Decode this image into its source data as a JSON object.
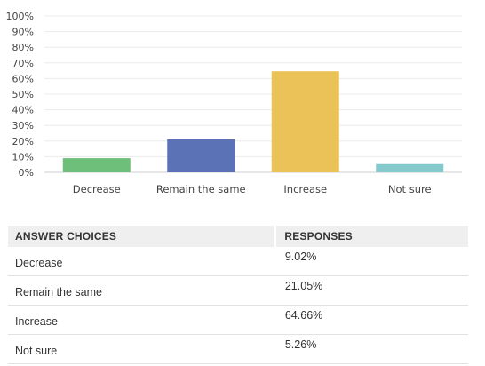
{
  "chart_data": {
    "type": "bar",
    "categories": [
      "Decrease",
      "Remain the same",
      "Increase",
      "Not sure"
    ],
    "values": [
      9.02,
      21.05,
      64.66,
      5.26
    ],
    "colors": [
      "#6dbf7a",
      "#5b73b6",
      "#eac257",
      "#84c9cb"
    ],
    "yticks": [
      "0%",
      "10%",
      "20%",
      "30%",
      "40%",
      "50%",
      "60%",
      "70%",
      "80%",
      "90%",
      "100%"
    ],
    "ylim": [
      0,
      100
    ],
    "grid": true,
    "title": "",
    "xlabel": "",
    "ylabel": ""
  },
  "table": {
    "headers": {
      "choice": "ANSWER CHOICES",
      "responses": "RESPONSES"
    },
    "rows": [
      {
        "choice": "Decrease",
        "response": "9.02%"
      },
      {
        "choice": "Remain the same",
        "response": "21.05%"
      },
      {
        "choice": "Increase",
        "response": "64.66%"
      },
      {
        "choice": "Not sure",
        "response": "5.26%"
      }
    ]
  }
}
